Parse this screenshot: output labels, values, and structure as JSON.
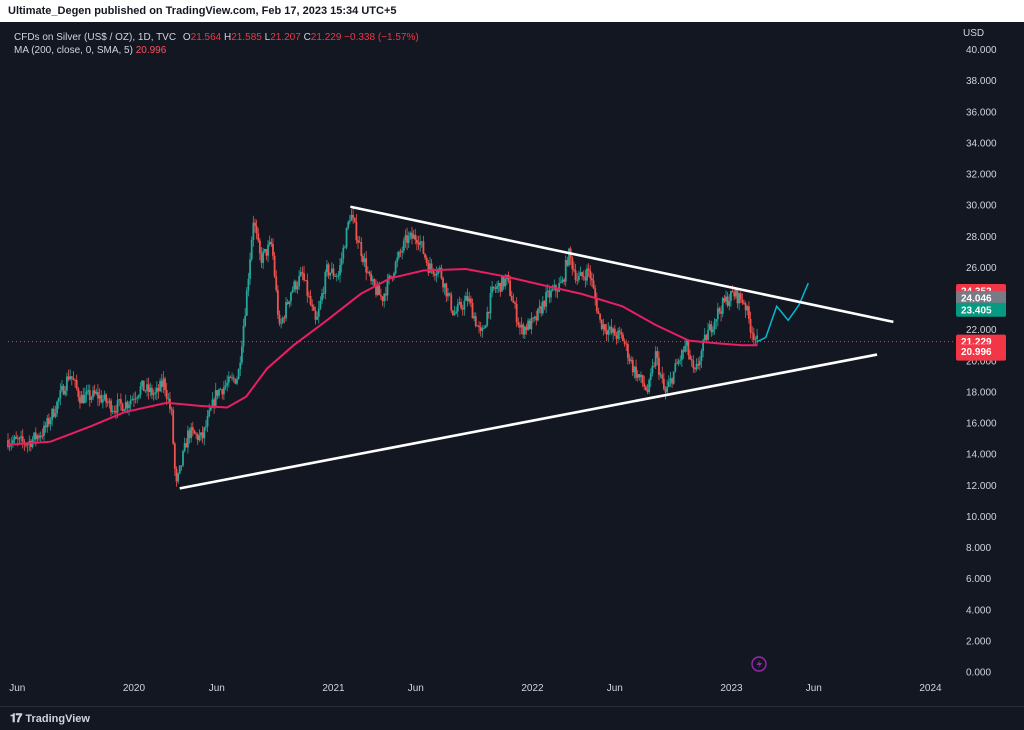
{
  "header": {
    "publish_line": "Ultimate_Degen published on TradingView.com, Feb 17, 2023 15:34 UTC+5"
  },
  "legend": {
    "instrument": "CFDs on Silver (US$ / OZ), 1D, TVC",
    "open_label": "O",
    "open": "21.564",
    "high_label": "H",
    "high": "21.585",
    "low_label": "L",
    "low": "21.207",
    "close_label": "C",
    "close": "21.229",
    "change": "−0.338 (−1.57%)",
    "ma_label": "MA (200, close, 0, SMA, 5)",
    "ma_value": "20.996"
  },
  "footer": {
    "brand": "TradingView",
    "brand_mark": "𝟏𝟕"
  },
  "colors": {
    "background": "#131722",
    "up": "#26a69a",
    "down": "#ef5350",
    "ma": "#e91e63",
    "projection": "#00bcd4",
    "trendline": "#ffffff",
    "price_tag_red": "#f23645",
    "price_tag_green": "#089981",
    "price_tag_gray": "#787b86"
  },
  "chart_data": {
    "type": "candlestick",
    "title": "CFDs on Silver (US$ / OZ), 1D, TVC",
    "y_unit": "USD",
    "ylim": [
      0,
      41
    ],
    "y_ticks": [
      "0.000",
      "2.000",
      "4.000",
      "6.000",
      "8.000",
      "10.000",
      "12.000",
      "14.000",
      "16.000",
      "18.000",
      "20.000",
      "22.000",
      "24.000",
      "26.000",
      "28.000",
      "30.000",
      "32.000",
      "34.000",
      "36.000",
      "38.000",
      "40.000"
    ],
    "x_ticks": [
      "Jun",
      "2020",
      "Jun",
      "2021",
      "Jun",
      "2022",
      "Jun",
      "2023",
      "Jun",
      "2024"
    ],
    "x_range": [
      "2019-05-15",
      "2024-02-15"
    ],
    "price_path": [
      [
        "2019-05-15",
        14.9
      ],
      [
        "2019-06-20",
        14.7
      ],
      [
        "2019-07-20",
        15.5
      ],
      [
        "2019-08-10",
        17.0
      ],
      [
        "2019-09-05",
        19.2
      ],
      [
        "2019-09-25",
        17.6
      ],
      [
        "2019-10-25",
        17.8
      ],
      [
        "2019-11-25",
        17.0
      ],
      [
        "2019-12-20",
        17.3
      ],
      [
        "2020-01-15",
        18.3
      ],
      [
        "2020-02-10",
        17.8
      ],
      [
        "2020-02-25",
        18.7
      ],
      [
        "2020-03-10",
        16.5
      ],
      [
        "2020-03-18",
        11.8
      ],
      [
        "2020-04-10",
        15.4
      ],
      [
        "2020-05-05",
        15.0
      ],
      [
        "2020-06-01",
        18.0
      ],
      [
        "2020-07-10",
        19.0
      ],
      [
        "2020-07-25",
        24.0
      ],
      [
        "2020-08-07",
        29.1
      ],
      [
        "2020-08-20",
        26.5
      ],
      [
        "2020-09-10",
        27.5
      ],
      [
        "2020-09-24",
        22.0
      ],
      [
        "2020-10-15",
        24.5
      ],
      [
        "2020-11-05",
        25.5
      ],
      [
        "2020-11-30",
        22.3
      ],
      [
        "2020-12-20",
        25.8
      ],
      [
        "2021-01-10",
        25.5
      ],
      [
        "2021-02-01",
        29.5
      ],
      [
        "2021-02-20",
        27.2
      ],
      [
        "2021-03-10",
        25.0
      ],
      [
        "2021-03-31",
        24.0
      ],
      [
        "2021-04-20",
        25.8
      ],
      [
        "2021-05-15",
        27.8
      ],
      [
        "2021-06-05",
        28.0
      ],
      [
        "2021-06-25",
        26.0
      ],
      [
        "2021-07-15",
        25.8
      ],
      [
        "2021-08-10",
        23.0
      ],
      [
        "2021-09-05",
        24.0
      ],
      [
        "2021-09-29",
        21.5
      ],
      [
        "2021-10-20",
        24.5
      ],
      [
        "2021-11-15",
        25.2
      ],
      [
        "2021-12-10",
        22.0
      ],
      [
        "2022-01-05",
        22.5
      ],
      [
        "2022-01-25",
        24.0
      ],
      [
        "2022-02-25",
        25.0
      ],
      [
        "2022-03-08",
        26.9
      ],
      [
        "2022-03-25",
        25.2
      ],
      [
        "2022-04-15",
        25.8
      ],
      [
        "2022-05-05",
        22.5
      ],
      [
        "2022-05-25",
        21.8
      ],
      [
        "2022-06-15",
        21.5
      ],
      [
        "2022-07-05",
        19.5
      ],
      [
        "2022-08-01",
        18.0
      ],
      [
        "2022-08-15",
        20.4
      ],
      [
        "2022-09-01",
        17.8
      ],
      [
        "2022-09-20",
        19.5
      ],
      [
        "2022-10-10",
        21.0
      ],
      [
        "2022-10-25",
        19.0
      ],
      [
        "2022-11-15",
        21.5
      ],
      [
        "2022-12-05",
        23.0
      ],
      [
        "2022-12-20",
        23.8
      ],
      [
        "2023-01-05",
        24.3
      ],
      [
        "2023-01-25",
        23.8
      ],
      [
        "2023-02-05",
        22.2
      ],
      [
        "2023-02-17",
        21.229
      ]
    ],
    "series": [
      {
        "name": "MA (200, close, 0, SMA, 5)",
        "type": "line",
        "points": [
          [
            "2019-05-15",
            14.6
          ],
          [
            "2019-08-01",
            14.8
          ],
          [
            "2019-10-15",
            15.8
          ],
          [
            "2019-12-15",
            16.7
          ],
          [
            "2020-03-01",
            17.3
          ],
          [
            "2020-05-01",
            17.1
          ],
          [
            "2020-06-20",
            17.0
          ],
          [
            "2020-07-25",
            17.7
          ],
          [
            "2020-09-01",
            19.5
          ],
          [
            "2020-10-20",
            21.0
          ],
          [
            "2020-12-20",
            22.6
          ],
          [
            "2021-02-20",
            24.3
          ],
          [
            "2021-04-15",
            25.3
          ],
          [
            "2021-06-15",
            25.8
          ],
          [
            "2021-09-01",
            25.9
          ],
          [
            "2021-11-15",
            25.4
          ],
          [
            "2022-01-15",
            24.9
          ],
          [
            "2022-04-01",
            24.3
          ],
          [
            "2022-06-15",
            23.5
          ],
          [
            "2022-08-15",
            22.3
          ],
          [
            "2022-10-15",
            21.3
          ],
          [
            "2022-12-15",
            21.1
          ],
          [
            "2023-01-20",
            21.0
          ],
          [
            "2023-02-17",
            20.996
          ]
        ]
      },
      {
        "name": "projection",
        "type": "drawing",
        "points": [
          [
            "2023-02-17",
            21.229
          ],
          [
            "2023-03-05",
            21.5
          ],
          [
            "2023-03-25",
            23.5
          ],
          [
            "2023-04-15",
            22.6
          ],
          [
            "2023-05-05",
            23.6
          ],
          [
            "2023-05-22",
            25.0
          ]
        ]
      }
    ],
    "trendlines": [
      {
        "name": "upper resistance",
        "from": [
          "2021-02-01",
          29.9
        ],
        "to": [
          "2023-10-25",
          22.5
        ]
      },
      {
        "name": "lower support",
        "from": [
          "2020-03-25",
          11.8
        ],
        "to": [
          "2023-09-25",
          20.4
        ]
      }
    ],
    "current_price_line": 21.229,
    "price_tags": [
      {
        "label": "24.352",
        "value": 24.352,
        "color": "#f23645"
      },
      {
        "label": "24.046",
        "value": 24.046,
        "color": "#787b86"
      },
      {
        "label": "23.405",
        "value": 23.405,
        "color": "#089981"
      },
      {
        "label": "21.229",
        "sub": "11:25:48",
        "value": 21.229,
        "color": "#f23645"
      },
      {
        "label": "20.996",
        "value": 20.996,
        "color": "#f23645"
      }
    ],
    "annotation_icon": "lightning-icon",
    "grid": false,
    "legend_position": "top-left"
  }
}
